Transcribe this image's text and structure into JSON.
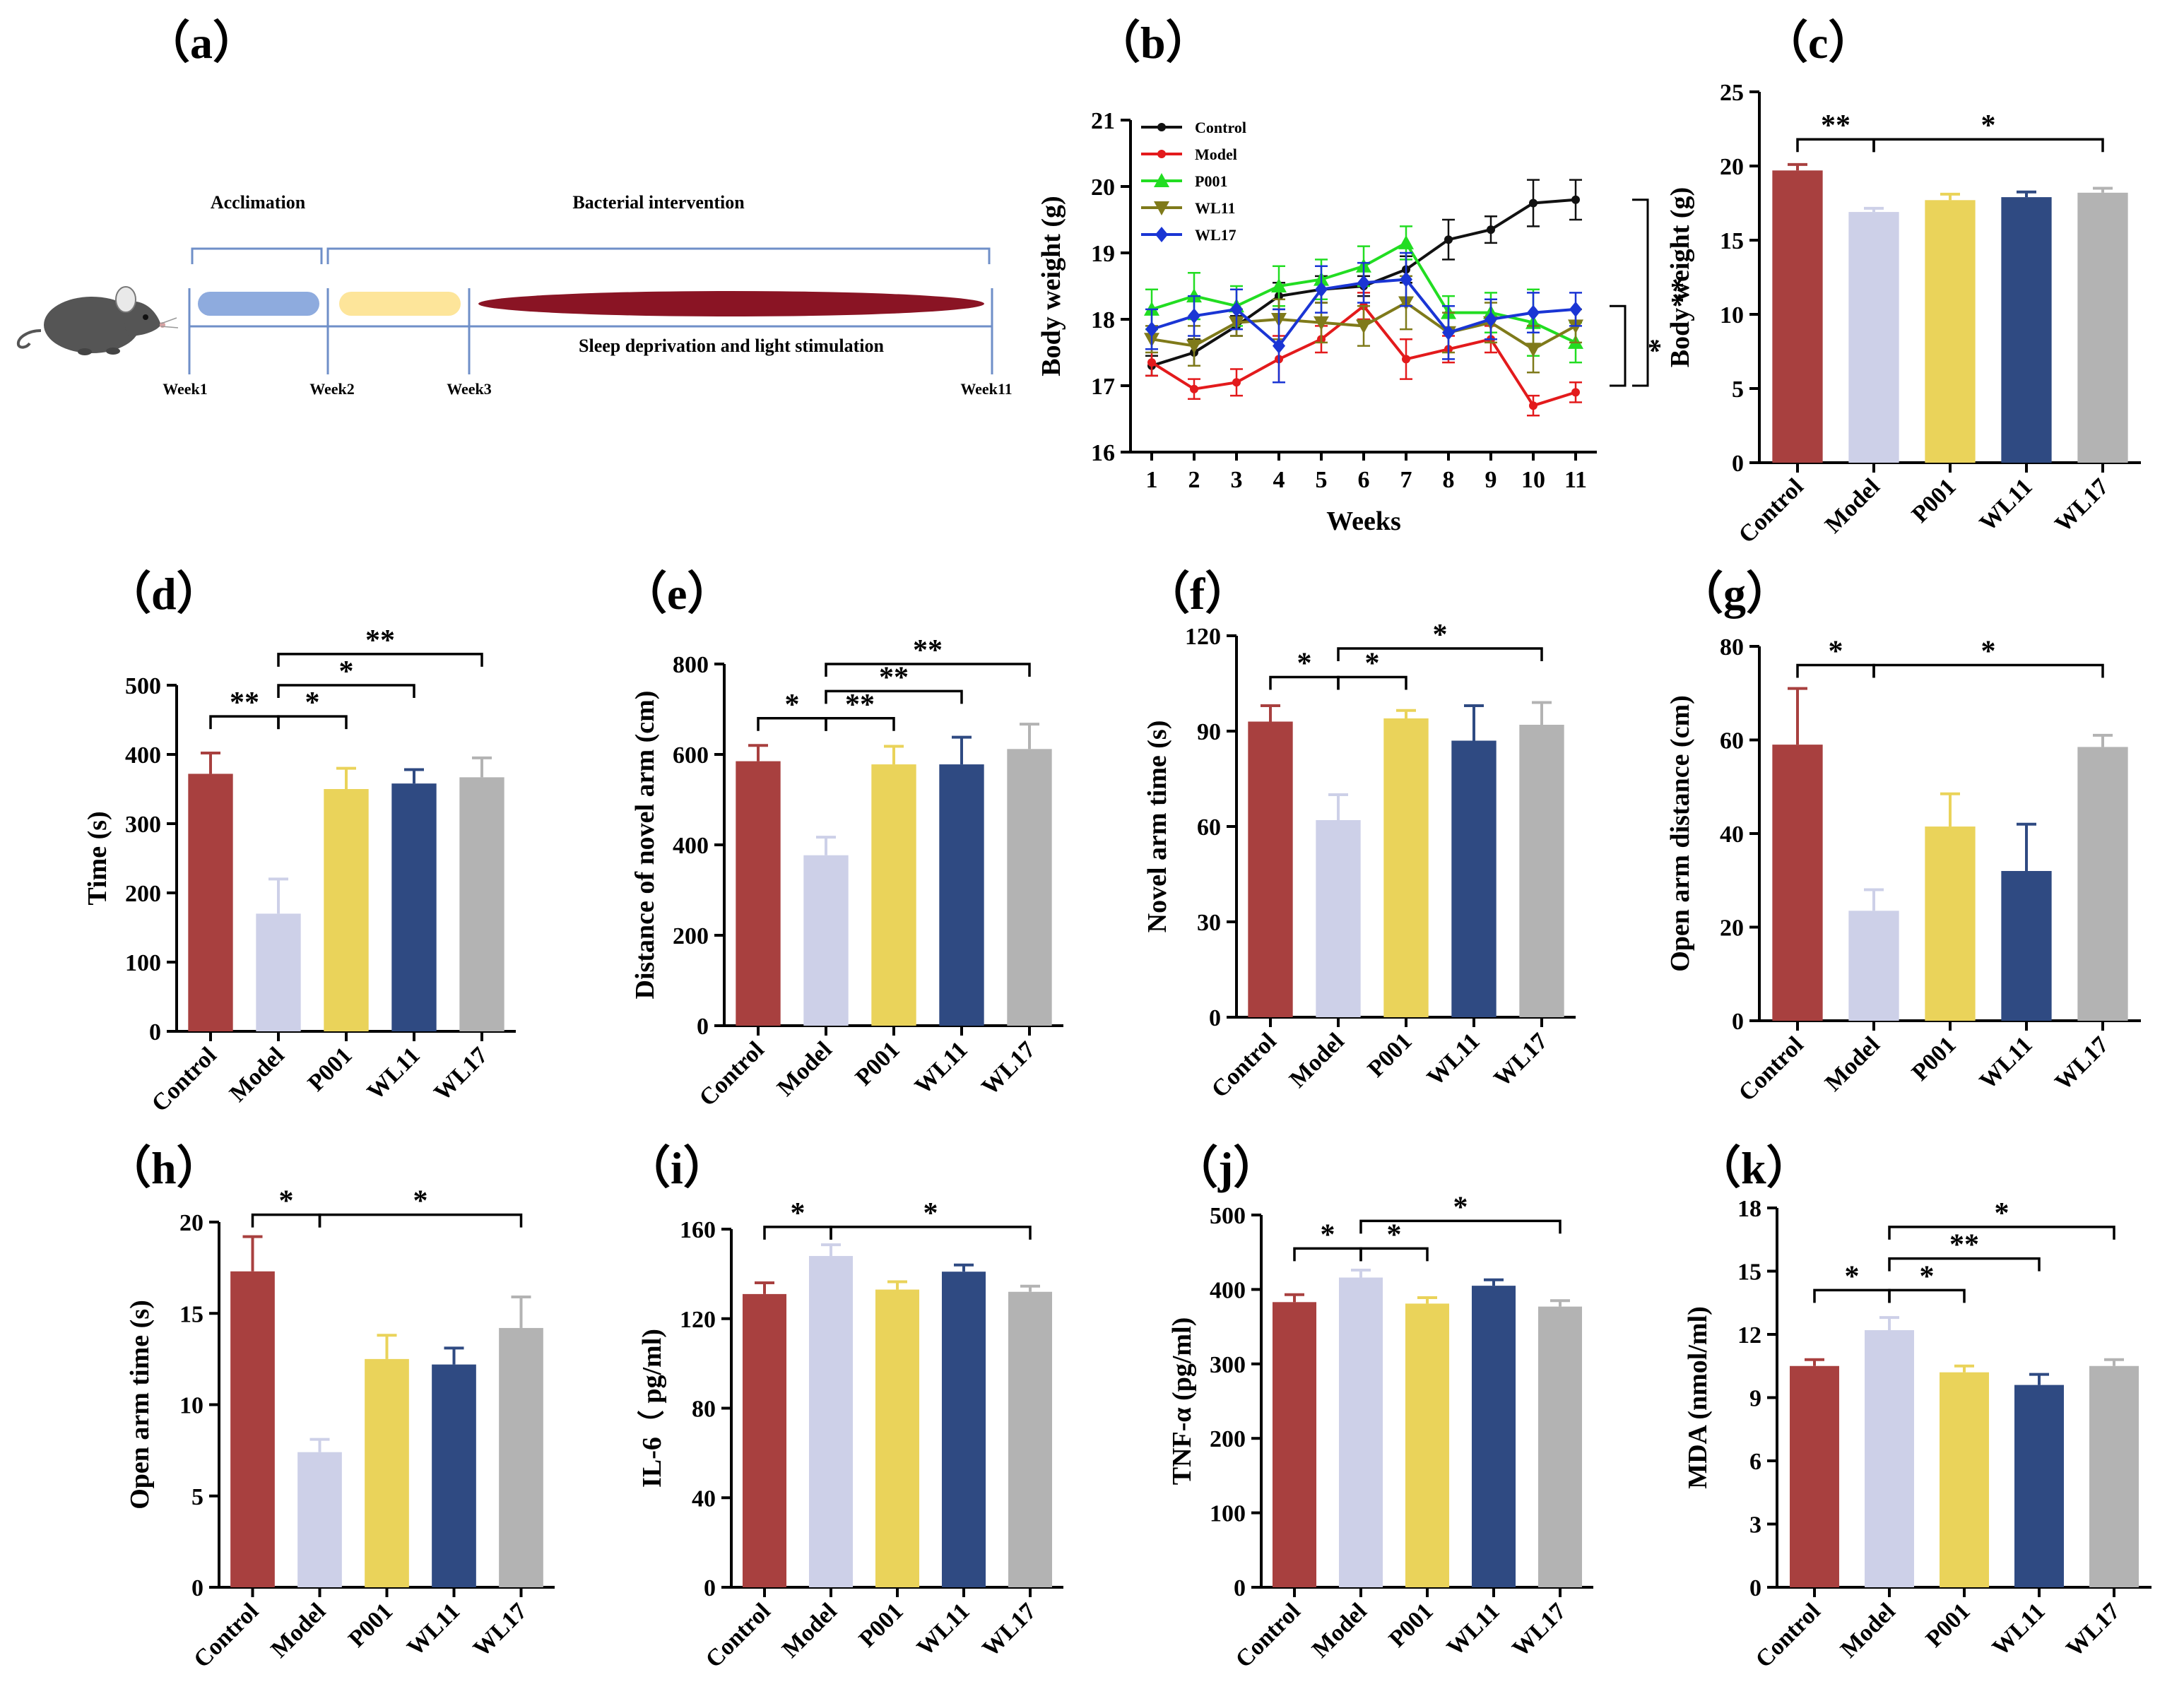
{
  "colors": {
    "Control": "#a8403f",
    "Model": "#cdd0e8",
    "P001": "#ead35a",
    "WL11": "#2f4a82",
    "WL17": "#b3b3b3"
  },
  "timeline": {
    "letter": "（a）",
    "acclimation_label": "Acclimation",
    "intervention_label": "Bacterial intervention",
    "stimulus_label": "Sleep deprivation and light stimulation",
    "weeks": [
      "Week1",
      "Week2",
      "Week3",
      "Week11"
    ],
    "icon": "mouse-icon",
    "phase_colors": {
      "acclimation": "#8eabde",
      "early": "#fde59a",
      "late": "#8a1424"
    }
  },
  "chart_data": [
    {
      "id": "b",
      "type": "line",
      "letter": "（b）",
      "ylabel": "Body weight (g)",
      "xlabel": "Weeks",
      "ylim": [
        16,
        21
      ],
      "yticks": [
        16,
        17,
        18,
        19,
        20,
        21
      ],
      "x": [
        1,
        2,
        3,
        4,
        5,
        6,
        7,
        8,
        9,
        10,
        11
      ],
      "series": [
        {
          "name": "Control",
          "color": "#111111",
          "marker": "circle",
          "values": [
            17.3,
            17.5,
            17.9,
            18.35,
            18.45,
            18.5,
            18.75,
            19.2,
            19.35,
            19.75,
            19.8
          ],
          "errors": [
            0.15,
            0.2,
            0.15,
            0.2,
            0.2,
            0.15,
            0.2,
            0.3,
            0.2,
            0.35,
            0.3
          ]
        },
        {
          "name": "Model",
          "color": "#e31a1c",
          "marker": "circle",
          "values": [
            17.35,
            16.95,
            17.05,
            17.4,
            17.7,
            18.2,
            17.4,
            17.55,
            17.7,
            16.7,
            16.9
          ],
          "errors": [
            0.2,
            0.15,
            0.2,
            0.35,
            0.2,
            0.2,
            0.3,
            0.2,
            0.2,
            0.15,
            0.15
          ]
        },
        {
          "name": "P001",
          "color": "#22dd22",
          "marker": "triangle-up",
          "values": [
            18.15,
            18.35,
            18.2,
            18.5,
            18.6,
            18.8,
            19.15,
            18.1,
            18.1,
            17.95,
            17.65
          ],
          "errors": [
            0.3,
            0.35,
            0.3,
            0.3,
            0.3,
            0.3,
            0.25,
            0.25,
            0.3,
            0.5,
            0.3
          ]
        },
        {
          "name": "WL11",
          "color": "#7f7a1a",
          "marker": "triangle-down",
          "values": [
            17.7,
            17.6,
            17.95,
            18.0,
            17.95,
            17.9,
            18.25,
            17.8,
            17.95,
            17.55,
            17.9
          ],
          "errors": [
            0.2,
            0.3,
            0.2,
            0.3,
            0.3,
            0.3,
            0.4,
            0.3,
            0.3,
            0.35,
            0.25
          ]
        },
        {
          "name": "WL17",
          "color": "#1a35d4",
          "marker": "diamond",
          "values": [
            17.85,
            18.05,
            18.15,
            17.6,
            18.45,
            18.55,
            18.6,
            17.8,
            18.0,
            18.1,
            18.15
          ],
          "errors": [
            0.3,
            0.3,
            0.3,
            0.55,
            0.35,
            0.3,
            0.4,
            0.4,
            0.3,
            0.3,
            0.25
          ]
        }
      ],
      "significance": [
        {
          "label": "**",
          "from": 19.8,
          "to": 17.0
        },
        {
          "label": "*",
          "from": 18.2,
          "to": 17.0
        }
      ]
    },
    {
      "id": "c",
      "type": "bar",
      "letter": "（c）",
      "ylabel": "Body weight (g)",
      "ylim": [
        0,
        25
      ],
      "yticks": [
        0,
        5,
        10,
        15,
        20,
        25
      ],
      "categories": [
        "Control",
        "Model",
        "P001",
        "WL11",
        "WL17"
      ],
      "values": [
        19.7,
        16.9,
        17.7,
        17.9,
        18.2
      ],
      "errors": [
        0.4,
        0.25,
        0.4,
        0.35,
        0.3
      ],
      "significance": [
        {
          "from": 0,
          "to": 1,
          "label": "**",
          "level": 21.8
        },
        {
          "from": 1,
          "to": 4,
          "label": "*",
          "level": 21.8
        }
      ]
    },
    {
      "id": "d",
      "type": "bar",
      "letter": "（d）",
      "ylabel": "Time (s)",
      "ylim": [
        0,
        500
      ],
      "yticks": [
        0,
        100,
        200,
        300,
        400,
        500
      ],
      "categories": [
        "Control",
        "Model",
        "P001",
        "WL11",
        "WL17"
      ],
      "values": [
        372,
        170,
        350,
        358,
        367
      ],
      "errors": [
        30,
        50,
        30,
        20,
        28
      ],
      "significance": [
        {
          "from": 0,
          "to": 1,
          "label": "**",
          "level": 455
        },
        {
          "from": 1,
          "to": 2,
          "label": "*",
          "level": 455
        },
        {
          "from": 1,
          "to": 3,
          "label": "*",
          "level": 500
        },
        {
          "from": 1,
          "to": 4,
          "label": "**",
          "level": 545
        }
      ]
    },
    {
      "id": "e",
      "type": "bar",
      "letter": "（e）",
      "ylabel": "Distance of novel arm (cm)",
      "ylim": [
        0,
        800
      ],
      "yticks": [
        0,
        200,
        400,
        600,
        800
      ],
      "categories": [
        "Control",
        "Model",
        "P001",
        "WL11",
        "WL17"
      ],
      "values": [
        585,
        377,
        578,
        578,
        612
      ],
      "errors": [
        35,
        40,
        40,
        60,
        55
      ],
      "significance": [
        {
          "from": 0,
          "to": 1,
          "label": "*",
          "level": 680
        },
        {
          "from": 1,
          "to": 2,
          "label": "**",
          "level": 680
        },
        {
          "from": 1,
          "to": 3,
          "label": "**",
          "level": 740
        },
        {
          "from": 1,
          "to": 4,
          "label": "**",
          "level": 800
        }
      ]
    },
    {
      "id": "f",
      "type": "bar",
      "letter": "（f）",
      "ylabel": "Novel arm time (s)",
      "ylim": [
        0,
        120
      ],
      "yticks": [
        0,
        30,
        60,
        90,
        120
      ],
      "categories": [
        "Control",
        "Model",
        "P001",
        "WL11",
        "WL17"
      ],
      "values": [
        93,
        62,
        94,
        87,
        92
      ],
      "errors": [
        5,
        8,
        2.5,
        11,
        7
      ],
      "significance": [
        {
          "from": 0,
          "to": 1,
          "label": "*",
          "level": 107
        },
        {
          "from": 1,
          "to": 2,
          "label": "*",
          "level": 107
        },
        {
          "from": 1,
          "to": 4,
          "label": "*",
          "level": 116
        }
      ]
    },
    {
      "id": "g",
      "type": "bar",
      "letter": "（g）",
      "ylabel": "Open arm distance (cm)",
      "ylim": [
        0,
        80
      ],
      "yticks": [
        0,
        20,
        40,
        60,
        80
      ],
      "categories": [
        "Control",
        "Model",
        "P001",
        "WL11",
        "WL17"
      ],
      "values": [
        59,
        23.5,
        41.5,
        32,
        58.5
      ],
      "errors": [
        12,
        4.5,
        7,
        10,
        2.5
      ],
      "significance": [
        {
          "from": 0,
          "to": 1,
          "label": "*",
          "level": 76
        },
        {
          "from": 1,
          "to": 4,
          "label": "*",
          "level": 76
        }
      ]
    },
    {
      "id": "h",
      "type": "bar",
      "letter": "（h）",
      "ylabel": "Open arm time (s)",
      "ylim": [
        0,
        20
      ],
      "yticks": [
        0,
        5,
        10,
        15,
        20
      ],
      "categories": [
        "Control",
        "Model",
        "P001",
        "WL11",
        "WL17"
      ],
      "values": [
        17.3,
        7.4,
        12.5,
        12.2,
        14.2
      ],
      "errors": [
        1.9,
        0.7,
        1.3,
        0.9,
        1.7
      ],
      "significance": [
        {
          "from": 0,
          "to": 1,
          "label": "*",
          "level": 20.4
        },
        {
          "from": 1,
          "to": 4,
          "label": "*",
          "level": 20.4
        }
      ]
    },
    {
      "id": "i",
      "type": "bar",
      "letter": "（i）",
      "ylabel": "IL-6（ pg/ml)",
      "ylim": [
        0,
        160
      ],
      "yticks": [
        0,
        40,
        80,
        120,
        160
      ],
      "categories": [
        "Control",
        "Model",
        "P001",
        "WL11",
        "WL17"
      ],
      "values": [
        131,
        148,
        133,
        141,
        132
      ],
      "errors": [
        5,
        5,
        3.5,
        3,
        2.5
      ],
      "significance": [
        {
          "from": 0,
          "to": 1,
          "label": "*",
          "level": 161
        },
        {
          "from": 1,
          "to": 4,
          "label": "*",
          "level": 161
        }
      ]
    },
    {
      "id": "j",
      "type": "bar",
      "letter": "（j）",
      "ylabel": "TNF-α (pg/ml)",
      "ylim": [
        0,
        500
      ],
      "yticks": [
        0,
        100,
        200,
        300,
        400,
        500
      ],
      "categories": [
        "Control",
        "Model",
        "P001",
        "WL11",
        "WL17"
      ],
      "values": [
        383,
        416,
        381,
        405,
        377
      ],
      "errors": [
        10,
        10,
        8,
        8,
        8
      ],
      "significance": [
        {
          "from": 0,
          "to": 1,
          "label": "*",
          "level": 455
        },
        {
          "from": 1,
          "to": 2,
          "label": "*",
          "level": 455
        },
        {
          "from": 1,
          "to": 4,
          "label": "*",
          "level": 492
        }
      ]
    },
    {
      "id": "k",
      "type": "bar",
      "letter": "（k）",
      "ylabel": "MDA (nmol/ml)",
      "ylim": [
        0,
        18
      ],
      "yticks": [
        0,
        3,
        6,
        9,
        12,
        15,
        18
      ],
      "categories": [
        "Control",
        "Model",
        "P001",
        "WL11",
        "WL17"
      ],
      "values": [
        10.5,
        12.2,
        10.2,
        9.6,
        10.5
      ],
      "errors": [
        0.3,
        0.6,
        0.3,
        0.5,
        0.3
      ],
      "significance": [
        {
          "from": 0,
          "to": 1,
          "label": "*",
          "level": 14.1
        },
        {
          "from": 1,
          "to": 2,
          "label": "*",
          "level": 14.1
        },
        {
          "from": 1,
          "to": 3,
          "label": "**",
          "level": 15.6
        },
        {
          "from": 1,
          "to": 4,
          "label": "*",
          "level": 17.1
        }
      ]
    }
  ]
}
